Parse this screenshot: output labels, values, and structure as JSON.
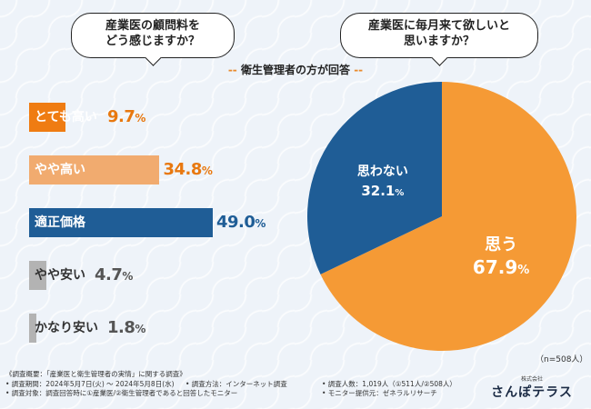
{
  "questions": {
    "left": [
      "産業医の顧問料を",
      "どう感じますか？"
    ],
    "right": [
      "産業医に毎月来て欲しいと",
      "思いますか？"
    ]
  },
  "subtitle": {
    "dash_left": "--",
    "text": "衛生管理者の方が回答",
    "dash_right": "--"
  },
  "colors": {
    "dark_orange": "#ef7c12",
    "light_orange": "#f1ab6f",
    "blue": "#1f5d96",
    "gray": "#b3b3b3",
    "pie_orange": "#f59a35",
    "pie_blue": "#1f5d96"
  },
  "chart_data": [
    {
      "type": "bar",
      "orientation": "horizontal",
      "title": "産業医の顧問料をどう感じますか？",
      "categories": [
        "とても高い",
        "やや高い",
        "適正価格",
        "やや安い",
        "かなり安い"
      ],
      "values": [
        9.7,
        34.8,
        49.0,
        4.7,
        1.8
      ],
      "value_labels": [
        "9.7",
        "34.8",
        "49.0",
        "4.7",
        "1.8"
      ],
      "unit": "%",
      "colors": [
        "#ef7c12",
        "#f1ab6f",
        "#1f5d96",
        "#b3b3b3",
        "#b3b3b3"
      ],
      "label_colors": [
        "#ffffff",
        "#ffffff",
        "#ffffff",
        "#333333",
        "#333333"
      ],
      "value_colors": [
        "#e8780f",
        "#e8780f",
        "#1f5d96",
        "#555555",
        "#555555"
      ],
      "xlim": [
        0,
        49.0
      ]
    },
    {
      "type": "pie",
      "title": "産業医に毎月来て欲しいと思いますか？",
      "labels": [
        "思う",
        "思わない"
      ],
      "values": [
        67.9,
        32.1
      ],
      "value_labels": [
        "67.9",
        "32.1"
      ],
      "unit": "%",
      "colors": [
        "#f59a35",
        "#1f5d96"
      ],
      "start_angle_deg": 0,
      "direction": "clockwise"
    }
  ],
  "sample_note": "（n=508人）",
  "notes": [
    [
      "《調査概要：「産業医と衛生管理者の実情」に関する調査》"
    ],
    [
      "• 調査期間：2024年5月7日(火) ～ 2024年5月8日(水)",
      "• 調査方法：インターネット調査",
      "• 調査人数：1,019人（①511人/②508人）"
    ],
    [
      "• 調査対象：調査回答時に①産業医/②衛生管理者であると回答したモニター",
      "• モニター提供元：ゼネラルリサーチ"
    ]
  ],
  "brand": {
    "small": "株式会社",
    "name": "さんぽテラス"
  }
}
